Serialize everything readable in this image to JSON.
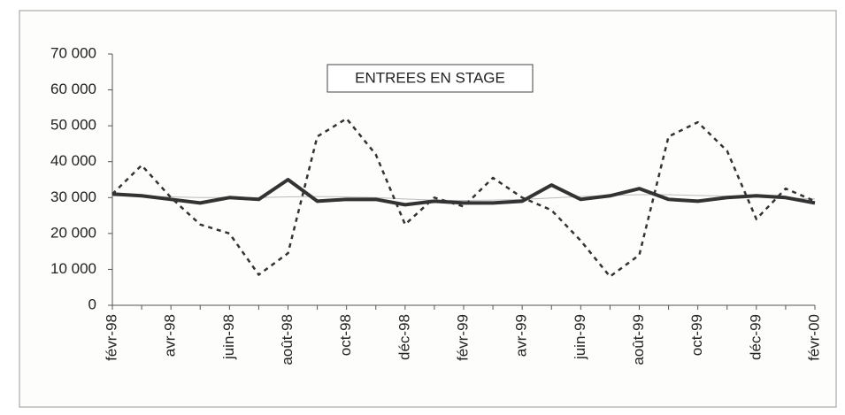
{
  "chart_data": {
    "type": "line",
    "title": "ENTREES EN STAGE",
    "categories": [
      "févr-98",
      null,
      "avr-98",
      null,
      "juin-98",
      null,
      "août-98",
      null,
      "oct-98",
      null,
      "déc-98",
      null,
      "févr-99",
      null,
      "avr-99",
      null,
      "juin-99",
      null,
      "août-99",
      null,
      "oct-99",
      null,
      "déc-99",
      null,
      "févr-00"
    ],
    "series": [
      {
        "color": "#bbbbbb",
        "width": 1,
        "dashed": false,
        "values": [
          30500,
          30400,
          30200,
          30000,
          30000,
          30000,
          30200,
          30300,
          30200,
          30000,
          29600,
          29300,
          29200,
          29300,
          29500,
          29900,
          30300,
          30600,
          30800,
          30800,
          30600,
          30400,
          30200,
          29900,
          29600
        ]
      },
      {
        "color": "#333333",
        "width": 2.5,
        "dashed": true,
        "values": [
          31000,
          39000,
          30000,
          22500,
          20000,
          8500,
          14500,
          47000,
          52000,
          42000,
          22500,
          30000,
          27500,
          35500,
          30000,
          26500,
          18000,
          8000,
          14000,
          47000,
          51000,
          43000,
          24000,
          32500,
          29000
        ]
      },
      {
        "color": "#333333",
        "width": 4,
        "dashed": false,
        "values": [
          31000,
          30500,
          29500,
          28500,
          30000,
          29500,
          35000,
          29000,
          29500,
          29500,
          28000,
          29000,
          28500,
          28500,
          29000,
          33500,
          29500,
          30500,
          32500,
          29500,
          29000,
          30000,
          30500,
          30000,
          28500
        ]
      }
    ],
    "ylim": [
      0,
      70000
    ],
    "yticks": [
      0,
      {
        "value": 10000,
        "label": "10 000"
      },
      {
        "value": 20000,
        "label": "20 000"
      },
      {
        "value": 30000,
        "label": "30 000"
      },
      {
        "value": 40000,
        "label": "40 000"
      },
      {
        "value": 50000,
        "label": "50 000"
      },
      {
        "value": 60000,
        "label": "60 000"
      },
      {
        "value": 70000,
        "label": "70 000"
      }
    ],
    "grid": false
  }
}
